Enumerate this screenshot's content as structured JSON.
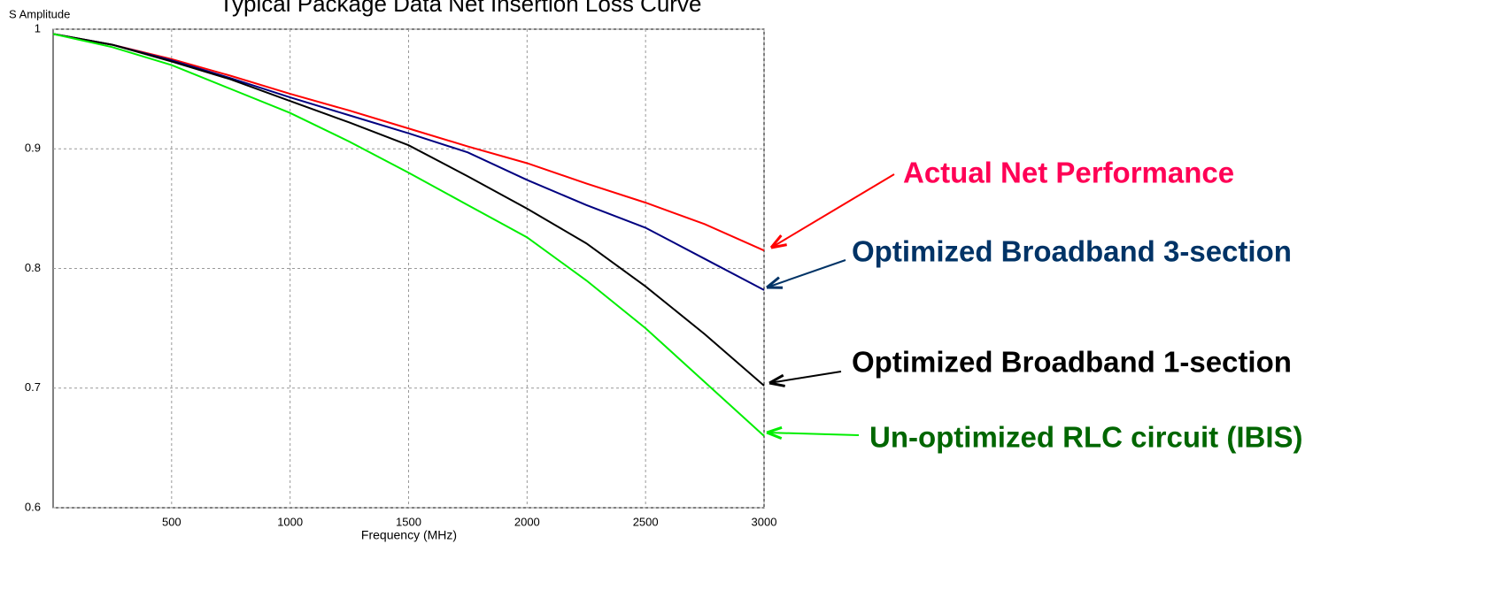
{
  "chart_data": {
    "type": "line",
    "title": "Typical Package Data Net Insertion Loss Curve",
    "y_label": "S Amplitude",
    "x_label": "Frequency (MHz)",
    "x": [
      0,
      250,
      500,
      750,
      1000,
      1250,
      1500,
      1750,
      2000,
      2250,
      2500,
      2750,
      3000
    ],
    "series": [
      {
        "name": "Actual Net Performance",
        "color": "#ff0000",
        "values": [
          0.996,
          0.987,
          0.975,
          0.961,
          0.946,
          0.932,
          0.917,
          0.902,
          0.888,
          0.871,
          0.855,
          0.837,
          0.815
        ]
      },
      {
        "name": "Optimized Broadband 3-section",
        "color": "#000080",
        "values": [
          0.996,
          0.987,
          0.974,
          0.959,
          0.943,
          0.928,
          0.913,
          0.897,
          0.874,
          0.853,
          0.834,
          0.808,
          0.782
        ]
      },
      {
        "name": "Optimized Broadband 1-section",
        "color": "#000000",
        "values": [
          0.996,
          0.987,
          0.973,
          0.958,
          0.94,
          0.922,
          0.903,
          0.877,
          0.85,
          0.821,
          0.785,
          0.745,
          0.702
        ]
      },
      {
        "name": "Un-optimized RLC circuit (IBIS)",
        "color": "#00ee00",
        "values": [
          0.996,
          0.985,
          0.97,
          0.95,
          0.93,
          0.906,
          0.88,
          0.853,
          0.826,
          0.79,
          0.75,
          0.705,
          0.66
        ]
      }
    ],
    "annotation_colors": [
      "#ff0055",
      "#003366",
      "#000000",
      "#006600"
    ],
    "xlim": [
      0,
      3000
    ],
    "xticks": [
      500,
      1000,
      1500,
      2000,
      2500,
      3000
    ],
    "ylim": [
      0.6,
      1
    ],
    "yticks": [
      0.6,
      0.7,
      0.8,
      0.9,
      1
    ],
    "grid": true
  }
}
